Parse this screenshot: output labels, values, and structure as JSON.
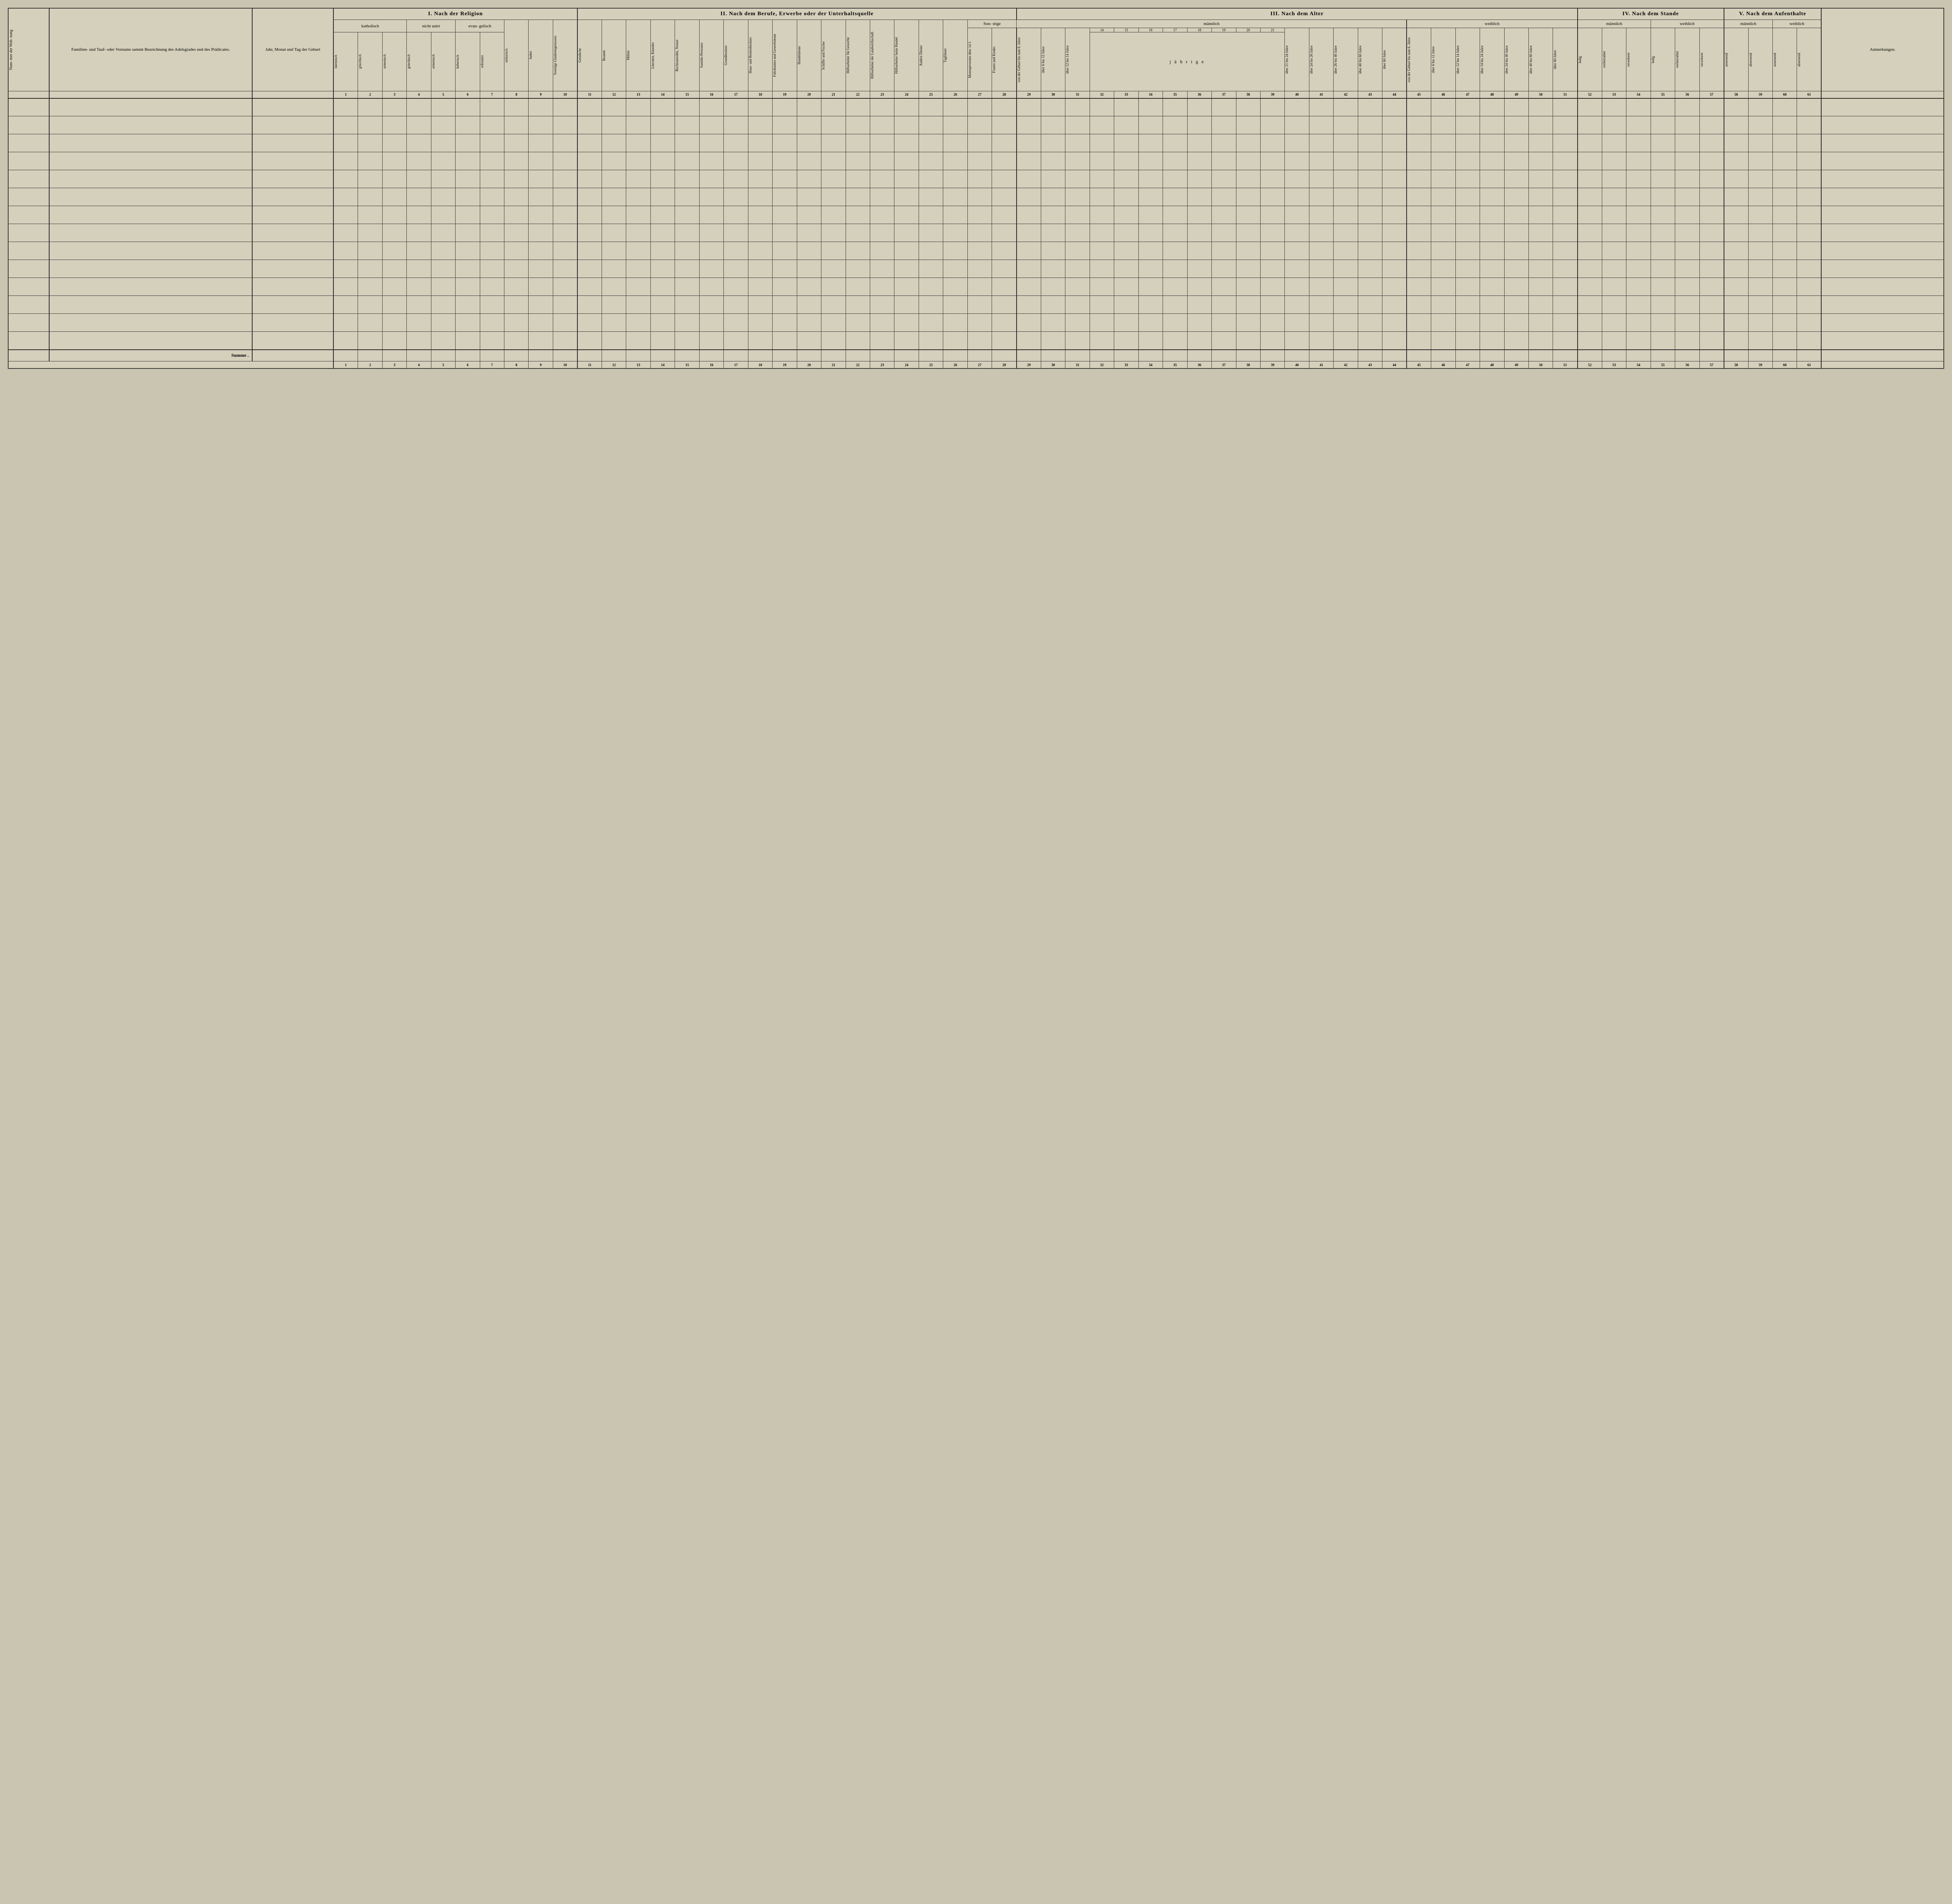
{
  "page": {
    "background_color": "#c9c5b0",
    "paper_color": "#d4d0bb",
    "border_color": "#3a3a3a",
    "font_family": "Times New Roman"
  },
  "left_cols": {
    "nummer": "Num-\nmer\nder\nWoh-\nnung",
    "familien": "Familien-\nund Tauf- oder Vorname\nsammt\nBezeichnung des Adelsgrades\nund des Prädicates.",
    "geburt": "Jahr, Monat\nund\nTag\nder Geburt"
  },
  "sections": {
    "I": "I. Nach der Religion",
    "II": "II. Nach dem Berufe, Erwerbe oder der\nUnterhaltsquelle",
    "III": "III. Nach dem Alter",
    "IV": "IV. Nach dem Stande",
    "V": "V. Nach dem\nAufenthalte"
  },
  "religion_groups": {
    "katholisch": "katholisch",
    "nicht_unirt": "nicht\nunirt",
    "evangelisch": "evan-\ngelisch"
  },
  "religion_cols": [
    "lateinisch",
    "griechisch",
    "armenisch",
    "griechisch",
    "armenisch",
    "lutherisch",
    "reformirt",
    "unitarisch",
    "Juden",
    "Sonstige Glaubensgenossen"
  ],
  "beruf_cols": [
    "Geistliche",
    "Beamte",
    "Militär",
    "Literaten, Künstler",
    "Rechtsanwälte, Notare",
    "Sanitäts-Personen",
    "Grundbesitzer",
    "Haus- und Rentenbesitzer",
    "Fabrikanten und Gewerbsleute",
    "Handelsleute",
    "Schiffer und Fischer",
    "Hilfsarbeiter für Gewerbe",
    "Hilfsarbeiter der Landwirthschaft",
    "Hilfsarbeiter beim Handel",
    "Andere Diener",
    "Taglöhner",
    "Mannspersonen über 14 J.",
    "Frauen und Kinder"
  ],
  "sonstige": "Son-\nstige",
  "alter": {
    "maennlich": "männlich",
    "weiblich": "weiblich",
    "von_geburt_6": "von der Geburt bis zum 6. Jahre",
    "ueber_6_12": "über 6 bis 12 Jahre",
    "ueber_12_14": "über 12 bis 14 Jahre",
    "year_nums": [
      "14",
      "15",
      "16",
      "17",
      "18",
      "19",
      "20",
      "21"
    ],
    "faehrige": "j ä h r i g e",
    "ueber_ranges_m": [
      "über 21 bis 24 Jahre",
      "über 24 bis 26 Jahre",
      "über 26 bis 40 Jahre",
      "über 40 bis 60 Jahre",
      "über 60 Jahre"
    ],
    "weiblich_cols": [
      "von der Geburt bis zum 6. Jahre",
      "über 6 bis 12 Jahre",
      "über 12 bis 14 Jahre",
      "über 14 bis 24 Jahre",
      "über 24 bis 40 Jahre",
      "über 40 bis 60 Jahre",
      "über 60 Jahre"
    ]
  },
  "stande": {
    "maennlich": "männlich",
    "weiblich": "weiblich",
    "cols": [
      "ledig",
      "verheirathet",
      "verwitwet"
    ]
  },
  "aufenthalt": {
    "maennlich": "männlich",
    "weiblich": "weiblich",
    "cols": [
      "anwesend",
      "abwesend"
    ]
  },
  "anmerkungen": "Anmerkungen.",
  "summe": "Summe .",
  "col_numbers_top": [
    "1",
    "2",
    "3",
    "4",
    "5",
    "6",
    "7",
    "8",
    "9",
    "10",
    "11",
    "12",
    "13",
    "14",
    "15",
    "16",
    "17",
    "18",
    "19",
    "20",
    "21",
    "22",
    "23",
    "24",
    "25",
    "26",
    "27",
    "28",
    "29",
    "30",
    "31",
    "32",
    "33",
    "34",
    "35",
    "36",
    "37",
    "38",
    "39",
    "40",
    "41",
    "42",
    "43",
    "44",
    "45",
    "46",
    "47",
    "48",
    "49",
    "50",
    "51",
    "52",
    "53",
    "54",
    "55",
    "56",
    "57",
    "58",
    "59",
    "60",
    "61"
  ],
  "data_row_count": 14
}
